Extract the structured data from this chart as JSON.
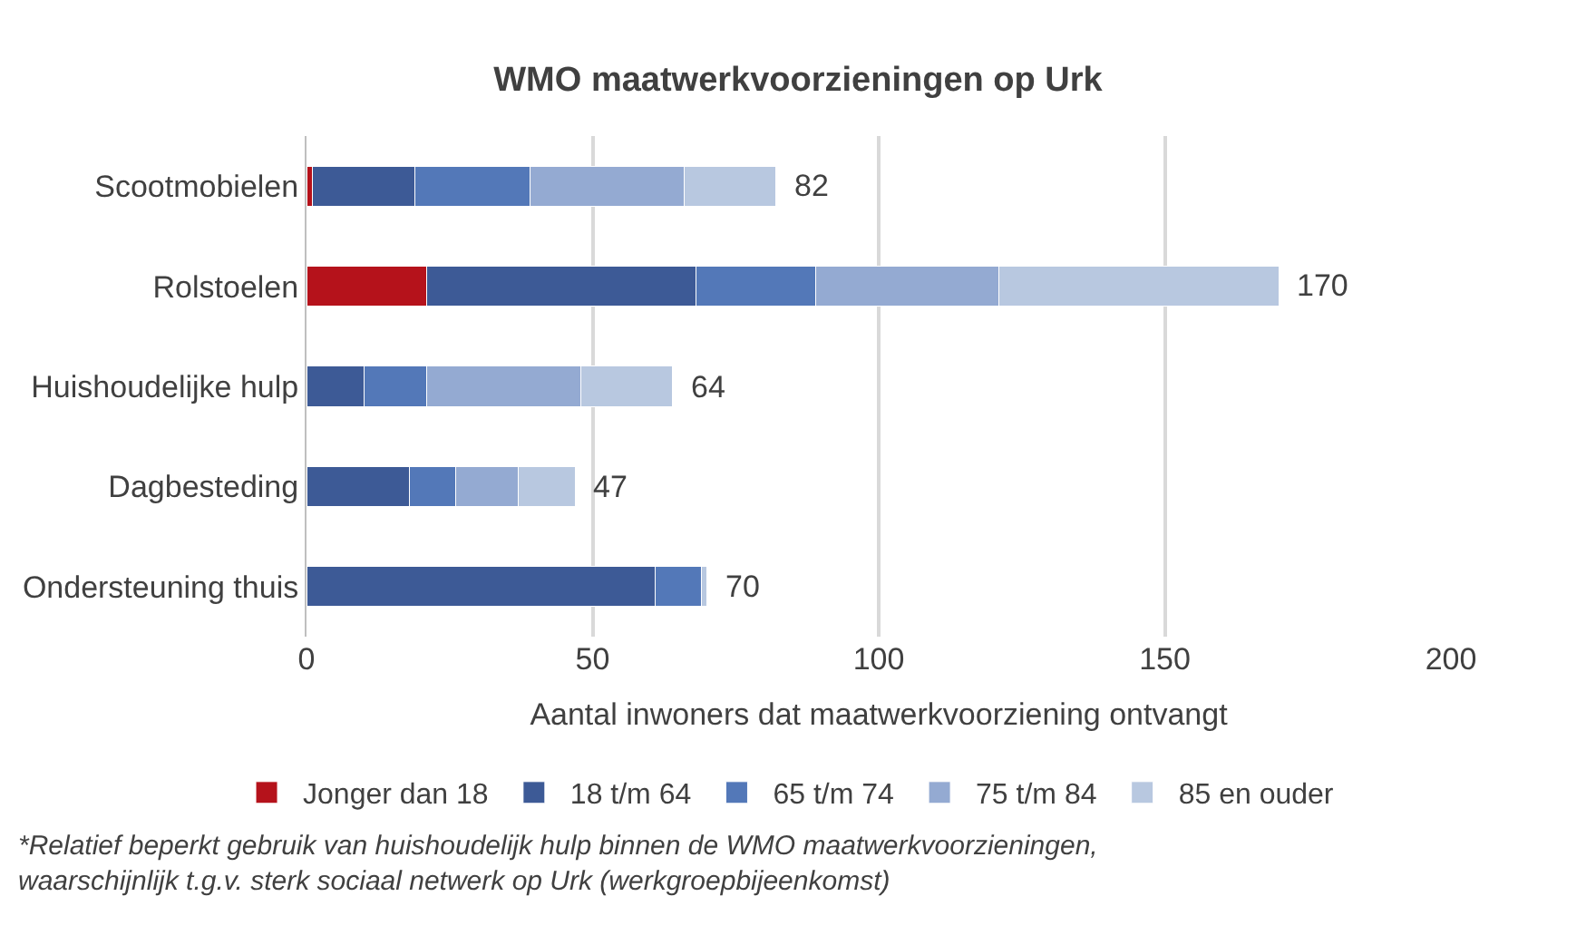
{
  "chart_data": {
    "type": "bar",
    "orientation": "horizontal",
    "stacked": true,
    "title": "WMO maatwerkvoorzieningen op Urk",
    "xlabel": "Aantal inwoners dat maatwerkvoorziening ontvangt",
    "categories": [
      "Scootmobielen",
      "Rolstoelen",
      "Huishoudelijke hulp",
      "Dagbesteding",
      "Ondersteuning thuis"
    ],
    "series": [
      {
        "name": "Jonger dan 18",
        "color": "#b5121b",
        "values": [
          1,
          21,
          0,
          0,
          0
        ]
      },
      {
        "name": "18 t/m 64",
        "color": "#3d5a96",
        "values": [
          18,
          47,
          10,
          18,
          61
        ]
      },
      {
        "name": "65 t/m 74",
        "color": "#5378b8",
        "values": [
          20,
          21,
          11,
          8,
          8
        ]
      },
      {
        "name": "75 t/m 84",
        "color": "#94aad2",
        "values": [
          27,
          32,
          27,
          11,
          0
        ]
      },
      {
        "name": "85 en ouder",
        "color": "#b8c8e0",
        "values": [
          16,
          49,
          16,
          10,
          1
        ]
      }
    ],
    "totals": [
      "82",
      "170",
      "64",
      "47",
      "70"
    ],
    "xlim": [
      0,
      200
    ],
    "xticks": [
      0,
      50,
      100,
      150,
      200
    ],
    "grid": "x",
    "legend": "bottom",
    "annotations": [
      "*Relatief beperkt gebruik van huishoudelijk hulp binnen de WMO maatwerkvoorzieningen,\nwaarschijnlijk t.g.v. sterk sociaal netwerk op Urk (werkgroepbijeenkomst)"
    ]
  }
}
